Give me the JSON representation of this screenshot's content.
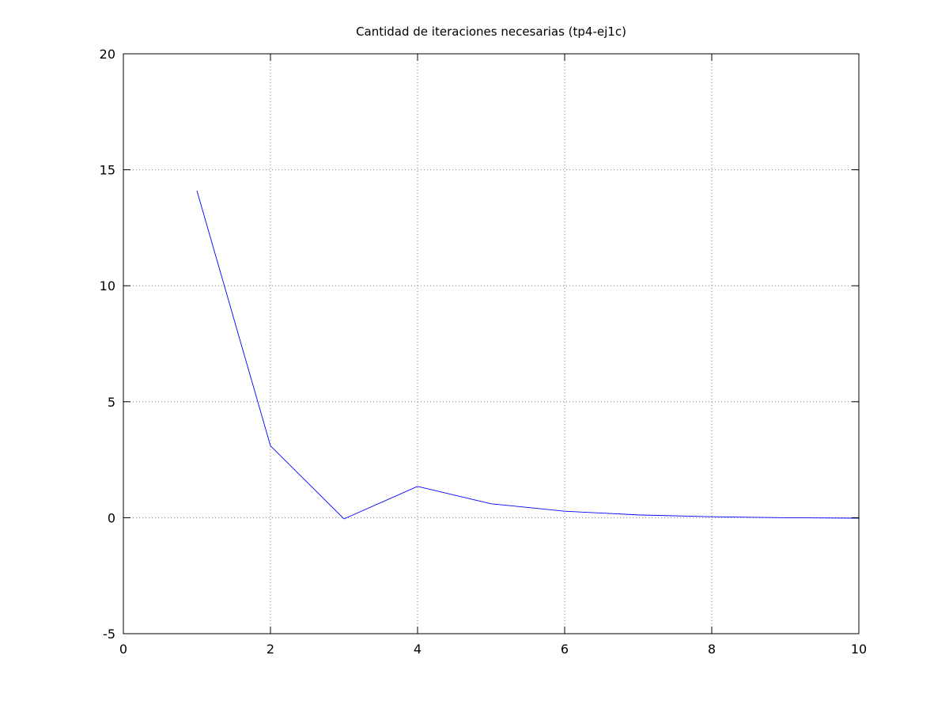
{
  "chart_data": {
    "type": "line",
    "title": "Cantidad de iteraciones necesarias (tp4-ej1c)",
    "xlabel": "",
    "ylabel": "",
    "xlim": [
      0,
      10
    ],
    "ylim": [
      -5,
      20
    ],
    "xticks": [
      0,
      2,
      4,
      6,
      8,
      10
    ],
    "yticks": [
      -5,
      0,
      5,
      10,
      15,
      20
    ],
    "grid": true,
    "series": [
      {
        "color": "#0000ff",
        "x": [
          1,
          2,
          3,
          4,
          5,
          6,
          7,
          8,
          9,
          10
        ],
        "y": [
          14.1,
          3.1,
          -0.05,
          1.35,
          0.6,
          0.28,
          0.12,
          0.04,
          0.0,
          -0.02
        ]
      }
    ]
  }
}
